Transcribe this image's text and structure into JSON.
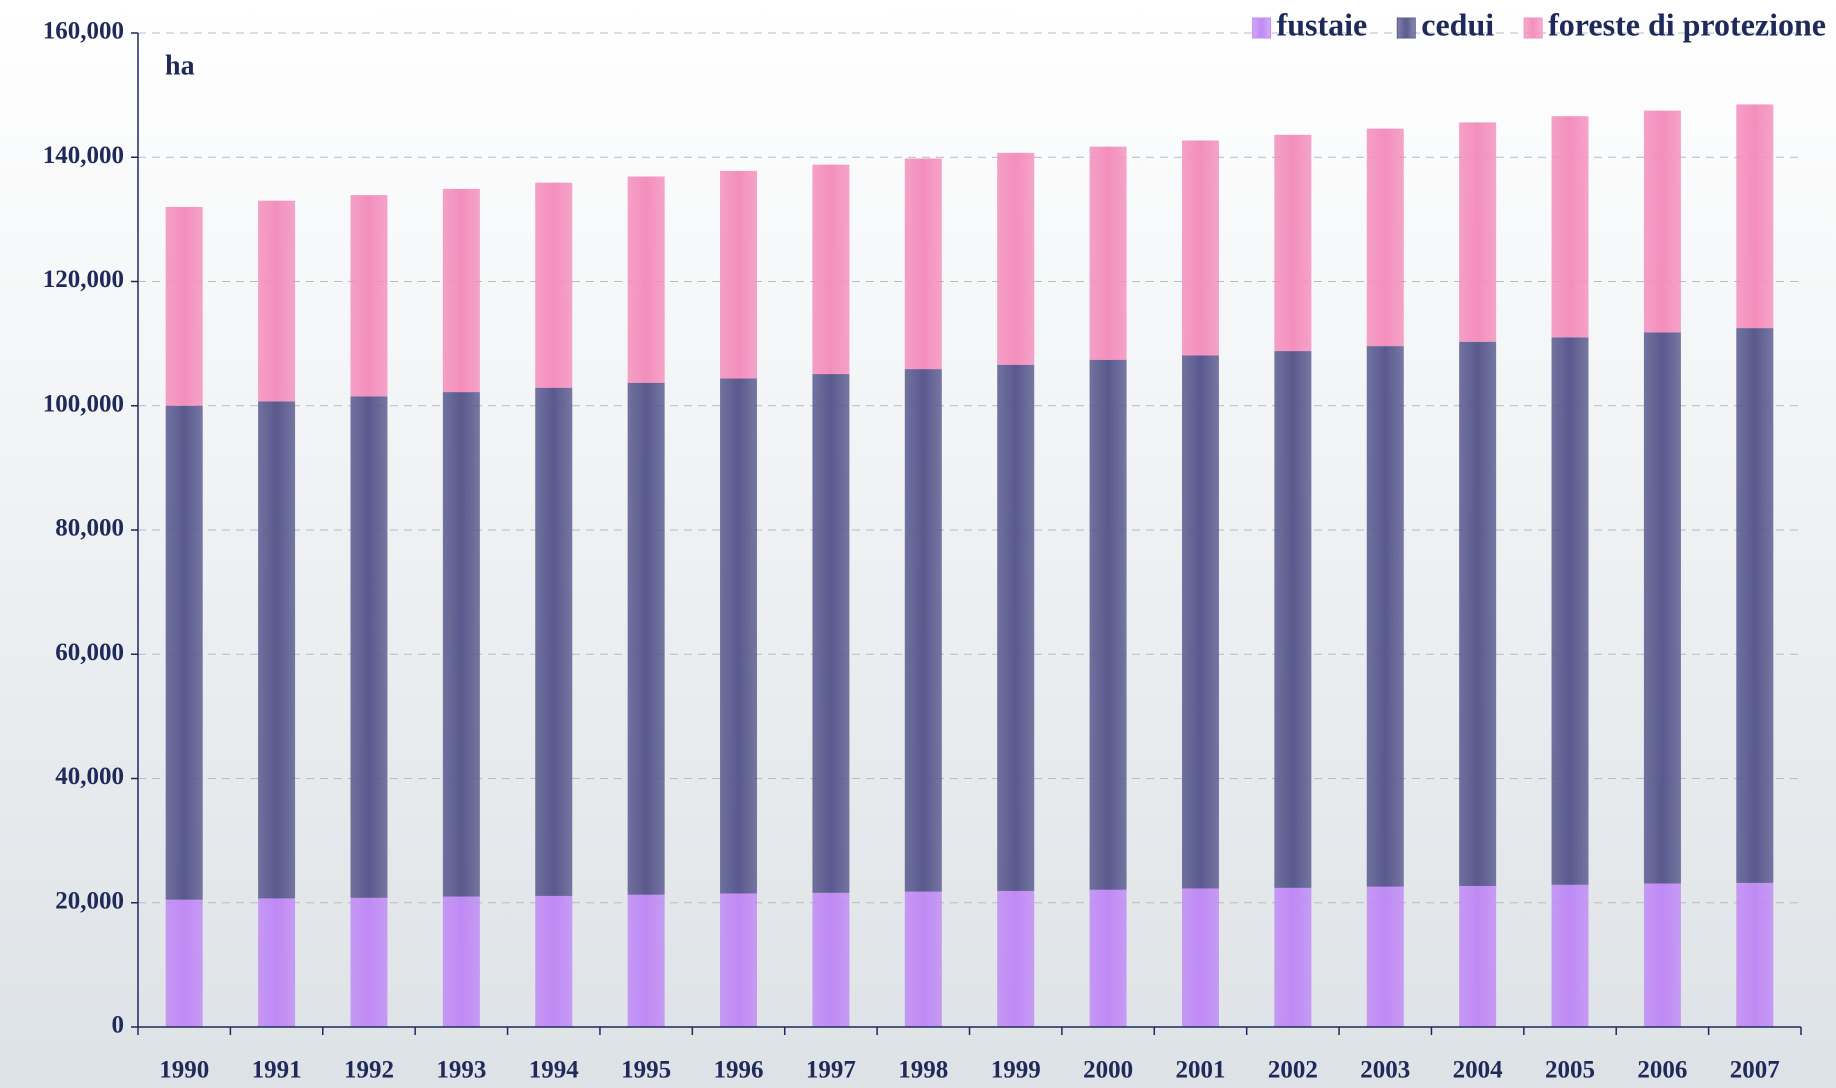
{
  "chart_data": {
    "type": "stacked_bar",
    "y_label": "ha",
    "categories": [
      "1990",
      "1991",
      "1992",
      "1993",
      "1994",
      "1995",
      "1996",
      "1997",
      "1998",
      "1999",
      "2000",
      "2001",
      "2002",
      "2003",
      "2004",
      "2005",
      "2006",
      "2007"
    ],
    "series": [
      {
        "name": "fustaie",
        "color": "#c08af5",
        "values": [
          20500,
          20700,
          20800,
          21000,
          21100,
          21300,
          21500,
          21600,
          21800,
          21900,
          22100,
          22300,
          22400,
          22600,
          22700,
          22900,
          23100,
          23200
        ]
      },
      {
        "name": "cedui",
        "color": "#5a5a8e",
        "values": [
          79500,
          80000,
          80700,
          81200,
          81800,
          82400,
          82900,
          83500,
          84100,
          84700,
          85300,
          85800,
          86400,
          87000,
          87600,
          88100,
          88700,
          89300
        ]
      },
      {
        "name": "foreste di protezione",
        "color": "#f48fbd",
        "values": [
          32000,
          32300,
          32400,
          32700,
          33000,
          33200,
          33400,
          33700,
          33900,
          34100,
          34300,
          34600,
          34800,
          35000,
          35300,
          35600,
          35700,
          36000
        ]
      }
    ],
    "ylim": [
      0,
      160000
    ],
    "yticks": [
      0,
      {
        "value": 20000,
        "label": "20,000"
      },
      {
        "value": 40000,
        "label": "40,000"
      },
      {
        "value": 60000,
        "label": "60,000"
      },
      {
        "value": 80000,
        "label": "80,000"
      },
      {
        "value": 100000,
        "label": "100,000"
      },
      {
        "value": 120000,
        "label": "120,000"
      },
      {
        "value": 140000,
        "label": "140,000"
      },
      {
        "value": 160000,
        "label": "160,000"
      }
    ],
    "grid": true,
    "legend": "top-right"
  }
}
